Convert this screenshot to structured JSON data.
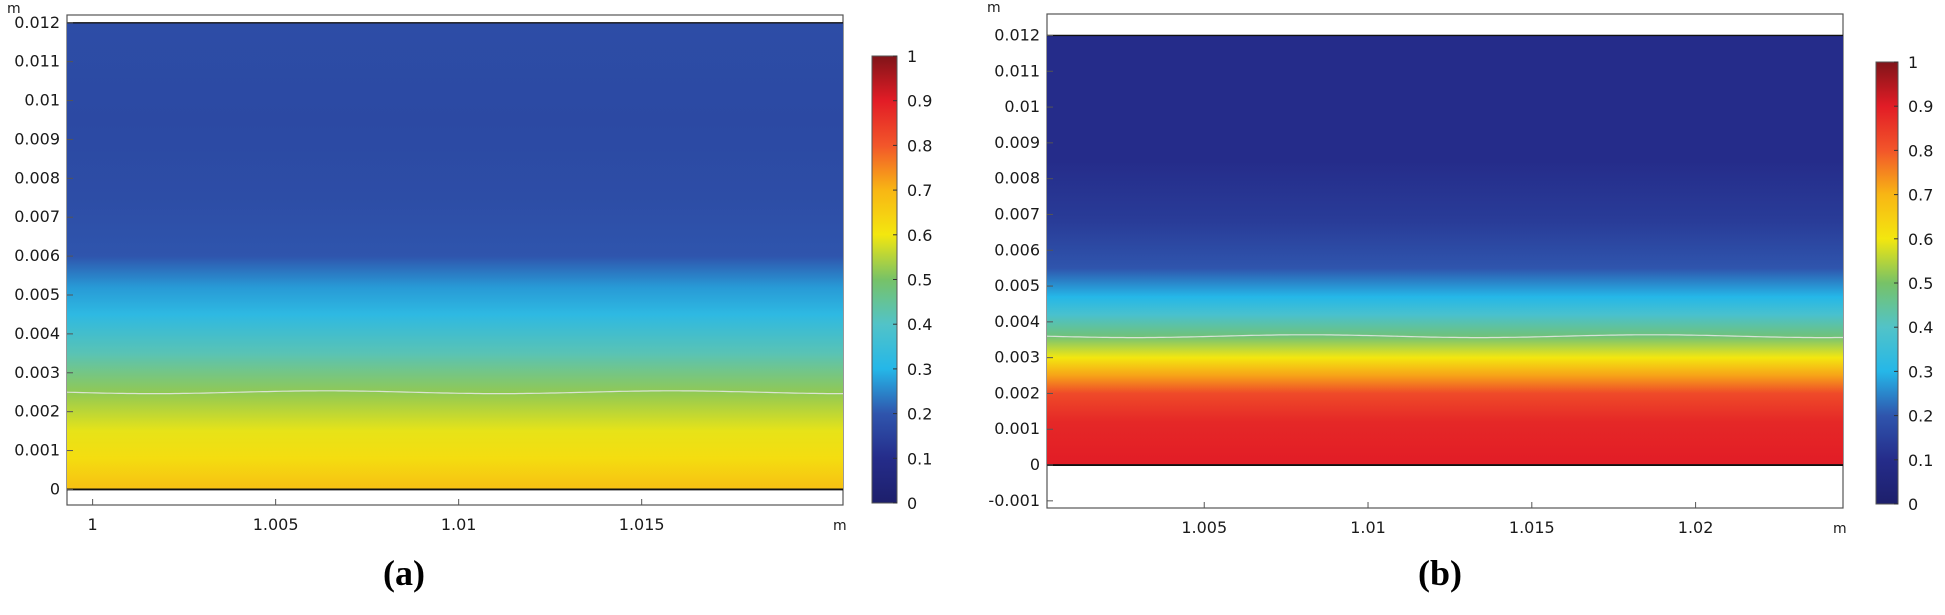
{
  "chart_data": [
    {
      "type": "heatmap",
      "caption": "(a)",
      "x_unit": "m",
      "y_unit": "m",
      "xlim": [
        0.9993,
        1.0205
      ],
      "ylim": [
        -0.0004,
        0.0122
      ],
      "xticks": [
        1,
        1.005,
        1.01,
        1.015
      ],
      "xtick_labels": [
        "1",
        "1.005",
        "1.01",
        "1.015"
      ],
      "yticks": [
        0,
        0.001,
        0.002,
        0.003,
        0.004,
        0.005,
        0.006,
        0.007,
        0.008,
        0.009,
        0.01,
        0.011,
        0.012
      ],
      "ytick_labels": [
        "0",
        "0.001",
        "0.002",
        "0.003",
        "0.004",
        "0.005",
        "0.006",
        "0.007",
        "0.008",
        "0.009",
        "0.01",
        "0.011",
        "0.012"
      ],
      "domain": {
        "x": [
          0.9993,
          1.0205
        ],
        "y": [
          0,
          0.012
        ]
      },
      "value_profile": [
        {
          "y": 0,
          "v": 0.68
        },
        {
          "y": 0.0008,
          "v": 0.62
        },
        {
          "y": 0.0015,
          "v": 0.59
        },
        {
          "y": 0.0025,
          "v": 0.52
        },
        {
          "y": 0.0035,
          "v": 0.42
        },
        {
          "y": 0.0045,
          "v": 0.32
        },
        {
          "y": 0.0052,
          "v": 0.27
        },
        {
          "y": 0.006,
          "v": 0.2
        },
        {
          "y": 0.0075,
          "v": 0.18
        },
        {
          "y": 0.0095,
          "v": 0.17
        },
        {
          "y": 0.012,
          "v": 0.18
        }
      ],
      "contour_y": 0.0025,
      "colorbar": {
        "min": 0,
        "max": 1,
        "ticks": [
          0,
          0.1,
          0.2,
          0.3,
          0.4,
          0.5,
          0.6,
          0.7,
          0.8,
          0.9,
          1
        ],
        "tick_labels": [
          "0",
          "0.1",
          "0.2",
          "0.3",
          "0.4",
          "0.5",
          "0.6",
          "0.7",
          "0.8",
          "0.9",
          "1"
        ]
      }
    },
    {
      "type": "heatmap",
      "caption": "(b)",
      "x_unit": "m",
      "y_unit": "m",
      "xlim": [
        1.0002,
        1.0245
      ],
      "ylim": [
        -0.0012,
        0.0126
      ],
      "xticks": [
        1.005,
        1.01,
        1.015,
        1.02
      ],
      "xtick_labels": [
        "1.005",
        "1.01",
        "1.015",
        "1.02"
      ],
      "yticks": [
        -0.001,
        0,
        0.001,
        0.002,
        0.003,
        0.004,
        0.005,
        0.006,
        0.007,
        0.008,
        0.009,
        0.01,
        0.011,
        0.012
      ],
      "ytick_labels": [
        "-0.001",
        "0",
        "0.001",
        "0.002",
        "0.003",
        "0.004",
        "0.005",
        "0.006",
        "0.007",
        "0.008",
        "0.009",
        "0.01",
        "0.011",
        "0.012"
      ],
      "domain": {
        "x": [
          1.0002,
          1.0245
        ],
        "y": [
          0,
          0.012
        ]
      },
      "value_profile": [
        {
          "y": 0,
          "v": 0.9
        },
        {
          "y": 0.0012,
          "v": 0.88
        },
        {
          "y": 0.002,
          "v": 0.82
        },
        {
          "y": 0.0025,
          "v": 0.72
        },
        {
          "y": 0.003,
          "v": 0.6
        },
        {
          "y": 0.0036,
          "v": 0.48
        },
        {
          "y": 0.0042,
          "v": 0.38
        },
        {
          "y": 0.0047,
          "v": 0.3
        },
        {
          "y": 0.0055,
          "v": 0.2
        },
        {
          "y": 0.0068,
          "v": 0.14
        },
        {
          "y": 0.0085,
          "v": 0.1
        },
        {
          "y": 0.012,
          "v": 0.1
        }
      ],
      "contour_y": 0.0036,
      "colorbar": {
        "min": 0,
        "max": 1,
        "ticks": [
          0,
          0.1,
          0.2,
          0.3,
          0.4,
          0.5,
          0.6,
          0.7,
          0.8,
          0.9,
          1
        ],
        "tick_labels": [
          "0",
          "0.1",
          "0.2",
          "0.3",
          "0.4",
          "0.5",
          "0.6",
          "0.7",
          "0.8",
          "0.9",
          "1"
        ]
      }
    }
  ]
}
